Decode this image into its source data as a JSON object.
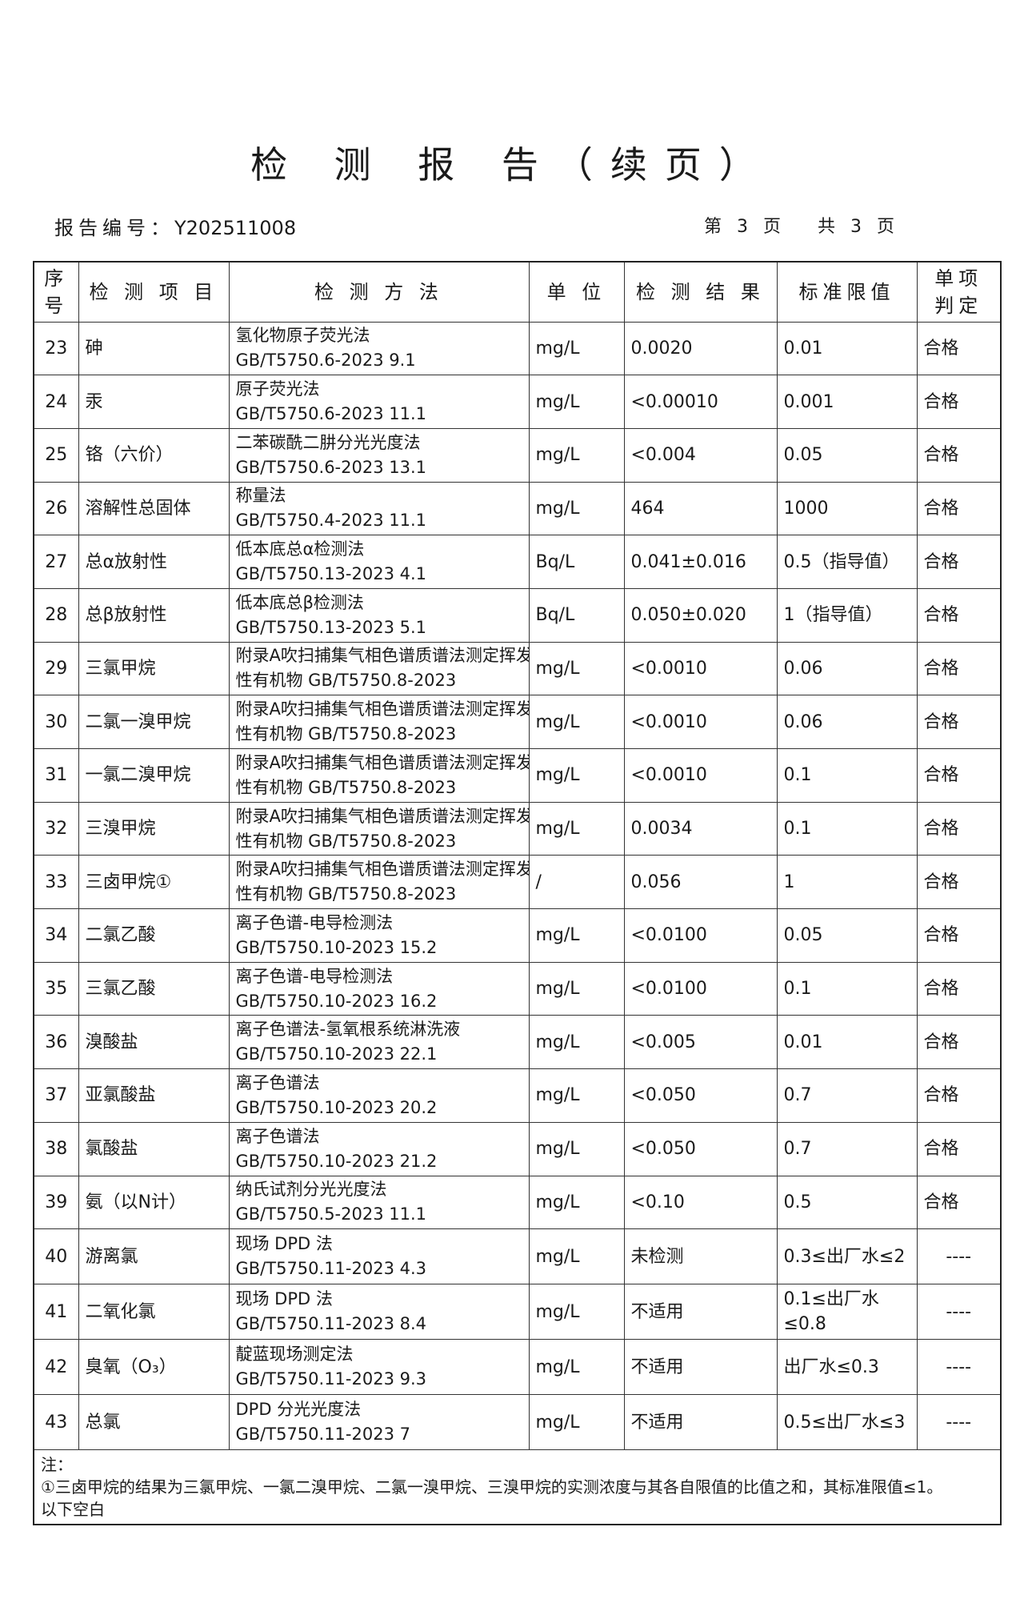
{
  "title": "检 测 报 告（续页）",
  "report_number_label": "报告编号：",
  "report_number": "Y202511008",
  "page_current": "第 3 页",
  "page_total": "共 3 页",
  "headers": [
    "序号",
    "检 测 项 目",
    "检 测 方 法",
    "单 位",
    "检 测 结 果",
    "标准限值",
    "单项 判定"
  ],
  "rows": [
    {
      "no": "23",
      "item": "砷",
      "method1": "氢化物原子荧光法",
      "method2": "GB/T5750.6-2023 9.1",
      "unit": "mg/L",
      "result": "0.0020",
      "limit": "0.01",
      "verdict": "合格"
    },
    {
      "no": "24",
      "item": "汞",
      "method1": "原子荧光法",
      "method2": "GB/T5750.6-2023 11.1",
      "unit": "mg/L",
      "result": "<0.00010",
      "limit": "0.001",
      "verdict": "合格"
    },
    {
      "no": "25",
      "item": "铬（六价）",
      "method1": "二苯碳酰二肼分光光度法",
      "method2": "GB/T5750.6-2023 13.1",
      "unit": "mg/L",
      "result": "<0.004",
      "limit": "0.05",
      "verdict": "合格"
    },
    {
      "no": "26",
      "item": "溶解性总固体",
      "method1": "称量法",
      "method2": "GB/T5750.4-2023 11.1",
      "unit": "mg/L",
      "result": "464",
      "limit": "1000",
      "verdict": "合格"
    },
    {
      "no": "27",
      "item": "总α放射性",
      "method1": "低本底总α检测法",
      "method2": "GB/T5750.13-2023 4.1",
      "unit": "Bq/L",
      "result": "0.041±0.016",
      "limit": "0.5（指导值）",
      "verdict": "合格"
    },
    {
      "no": "28",
      "item": "总β放射性",
      "method1": "低本底总β检测法",
      "method2": "GB/T5750.13-2023 5.1",
      "unit": "Bq/L",
      "result": "0.050±0.020",
      "limit": "1（指导值）",
      "verdict": "合格"
    },
    {
      "no": "29",
      "item": "三氯甲烷",
      "method1": "附录A吹扫捕集气相色谱质谱法测定挥发",
      "method2": "性有机物 GB/T5750.8-2023",
      "unit": "mg/L",
      "result": "<0.0010",
      "limit": "0.06",
      "verdict": "合格"
    },
    {
      "no": "30",
      "item": "二氯一溴甲烷",
      "method1": "附录A吹扫捕集气相色谱质谱法测定挥发",
      "method2": "性有机物 GB/T5750.8-2023",
      "unit": "mg/L",
      "result": "<0.0010",
      "limit": "0.06",
      "verdict": "合格"
    },
    {
      "no": "31",
      "item": "一氯二溴甲烷",
      "method1": "附录A吹扫捕集气相色谱质谱法测定挥发",
      "method2": "性有机物 GB/T5750.8-2023",
      "unit": "mg/L",
      "result": "<0.0010",
      "limit": "0.1",
      "verdict": "合格"
    },
    {
      "no": "32",
      "item": "三溴甲烷",
      "method1": "附录A吹扫捕集气相色谱质谱法测定挥发",
      "method2": "性有机物 GB/T5750.8-2023",
      "unit": "mg/L",
      "result": "0.0034",
      "limit": "0.1",
      "verdict": "合格"
    },
    {
      "no": "33",
      "item": "三卤甲烷①",
      "method1": "附录A吹扫捕集气相色谱质谱法测定挥发",
      "method2": "性有机物 GB/T5750.8-2023",
      "unit": "/",
      "result": "0.056",
      "limit": "1",
      "verdict": "合格"
    },
    {
      "no": "34",
      "item": "二氯乙酸",
      "method1": "离子色谱-电导检测法",
      "method2": "GB/T5750.10-2023 15.2",
      "unit": "mg/L",
      "result": "<0.0100",
      "limit": "0.05",
      "verdict": "合格"
    },
    {
      "no": "35",
      "item": "三氯乙酸",
      "method1": "离子色谱-电导检测法",
      "method2": "GB/T5750.10-2023 16.2",
      "unit": "mg/L",
      "result": "<0.0100",
      "limit": "0.1",
      "verdict": "合格"
    },
    {
      "no": "36",
      "item": "溴酸盐",
      "method1": "离子色谱法-氢氧根系统淋洗液",
      "method2": "GB/T5750.10-2023 22.1",
      "unit": "mg/L",
      "result": "<0.005",
      "limit": "0.01",
      "verdict": "合格"
    },
    {
      "no": "37",
      "item": "亚氯酸盐",
      "method1": "离子色谱法",
      "method2": "GB/T5750.10-2023 20.2",
      "unit": "mg/L",
      "result": "<0.050",
      "limit": "0.7",
      "verdict": "合格"
    },
    {
      "no": "38",
      "item": "氯酸盐",
      "method1": "离子色谱法",
      "method2": "GB/T5750.10-2023 21.2",
      "unit": "mg/L",
      "result": "<0.050",
      "limit": "0.7",
      "verdict": "合格"
    },
    {
      "no": "39",
      "item": "氨（以N计）",
      "method1": "纳氏试剂分光光度法",
      "method2": "GB/T5750.5-2023 11.1",
      "unit": "mg/L",
      "result": "<0.10",
      "limit": "0.5",
      "verdict": "合格"
    },
    {
      "no": "40",
      "item": "游离氯",
      "method1": "现场 DPD 法",
      "method2": "GB/T5750.11-2023 4.3",
      "unit": "mg/L",
      "result": "未检测",
      "limit": "0.3≤出厂水≤2",
      "verdict": "----"
    },
    {
      "no": "41",
      "item": "二氧化氯",
      "method1": "现场 DPD 法",
      "method2": "GB/T5750.11-2023 8.4",
      "unit": "mg/L",
      "result": "不适用",
      "limit": "0.1≤出厂水≤0.8",
      "verdict": "----"
    },
    {
      "no": "42",
      "item": "臭氧（O₃）",
      "method1": "靛蓝现场测定法",
      "method2": "GB/T5750.11-2023 9.3",
      "unit": "mg/L",
      "result": "不适用",
      "limit": "出厂水≤0.3",
      "verdict": "----"
    },
    {
      "no": "43",
      "item": "总氯",
      "method1": "DPD 分光光度法",
      "method2": "GB/T5750.11-2023 7",
      "unit": "mg/L",
      "result": "不适用",
      "limit": "0.5≤出厂水≤3",
      "verdict": "----"
    }
  ],
  "notes": {
    "label": "注：",
    "line1": "①三卤甲烷的结果为三氯甲烷、一氯二溴甲烷、二氯一溴甲烷、三溴甲烷的实测浓度与其各自限值的比值之和，其标准限值≤1。",
    "line2": "以下空白"
  }
}
